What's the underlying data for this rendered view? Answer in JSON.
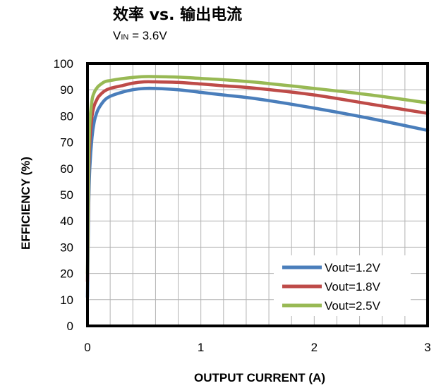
{
  "chart_data": {
    "type": "line",
    "title": "效率 vs. 输出电流",
    "subtitle": {
      "main": "V",
      "sub": "IN",
      "rest": " = 3.6V"
    },
    "xlabel": "OUTPUT  CURRENT  (A)",
    "ylabel": "EFFICIENCY  (%)",
    "xlim": [
      0,
      3
    ],
    "ylim": [
      0,
      100
    ],
    "x_ticks": [
      0,
      1,
      2,
      3
    ],
    "y_ticks": [
      0,
      10,
      20,
      30,
      40,
      50,
      60,
      70,
      80,
      90,
      100
    ],
    "x_minor_step": 0.2,
    "grid": true,
    "legend_position": "lower-right",
    "series": [
      {
        "name": "Vout=1.2V",
        "color": "#4a7ebb",
        "x": [
          0.0,
          0.01,
          0.02,
          0.04,
          0.06,
          0.08,
          0.1,
          0.15,
          0.2,
          0.3,
          0.4,
          0.5,
          0.6,
          0.8,
          1.0,
          1.2,
          1.5,
          2.0,
          2.5,
          3.0
        ],
        "y": [
          11,
          45,
          60,
          72,
          78,
          81,
          83,
          86,
          87.5,
          89,
          90,
          90.5,
          90.5,
          90,
          89,
          88,
          86.5,
          83,
          79,
          74.5
        ]
      },
      {
        "name": "Vout=1.8V",
        "color": "#be4b48",
        "x": [
          0.0,
          0.01,
          0.02,
          0.04,
          0.06,
          0.08,
          0.1,
          0.15,
          0.2,
          0.3,
          0.4,
          0.5,
          0.6,
          0.8,
          1.0,
          1.2,
          1.5,
          2.0,
          2.5,
          3.0
        ],
        "y": [
          17,
          55,
          70,
          80,
          84,
          86,
          87.5,
          89.5,
          90.5,
          91.5,
          92.5,
          93,
          93,
          92.8,
          92.2,
          91.5,
          90.5,
          88,
          84.5,
          81
        ]
      },
      {
        "name": "Vout=2.5V",
        "color": "#98b954",
        "x": [
          0.0,
          0.01,
          0.02,
          0.04,
          0.06,
          0.08,
          0.1,
          0.15,
          0.2,
          0.3,
          0.4,
          0.5,
          0.6,
          0.8,
          1.0,
          1.2,
          1.5,
          2.0,
          2.5,
          3.0
        ],
        "y": [
          20,
          62,
          77,
          86,
          89,
          90.5,
          91.5,
          93,
          93.5,
          94.2,
          94.7,
          95,
          95,
          94.8,
          94.3,
          93.8,
          92.8,
          90.5,
          88,
          85
        ]
      }
    ]
  }
}
